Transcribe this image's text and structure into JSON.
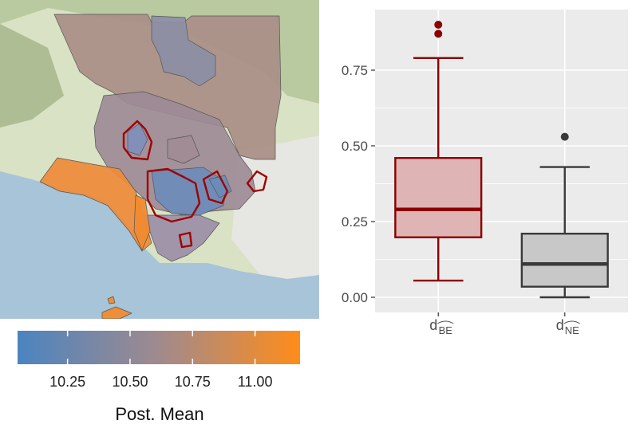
{
  "map": {
    "legend": {
      "title": "Post. Mean",
      "min": 10.05,
      "max": 11.18,
      "ticks": [
        "10.25",
        "10.50",
        "10.75",
        "11.00"
      ],
      "tick_values": [
        10.25,
        10.5,
        10.75,
        11.0
      ],
      "colors": {
        "low": "#4b84c0",
        "mid": "#a08a8e",
        "high": "#ff8c1a"
      }
    },
    "highlight_color": "#a00000"
  },
  "chart_data": {
    "type": "box",
    "title": "",
    "xlabel": "",
    "ylabel": "",
    "ylim": [
      -0.05,
      0.95
    ],
    "yticks": [
      "0.00",
      "0.25",
      "0.50",
      "0.75"
    ],
    "ytick_values": [
      0,
      0.25,
      0.5,
      0.75
    ],
    "categories": [
      "d",
      "d"
    ],
    "category_subscripts": [
      "BE",
      "NE"
    ],
    "series": [
      {
        "whisker_low": 0.055,
        "q1": 0.198,
        "median": 0.29,
        "q3": 0.46,
        "whisker_high": 0.79,
        "outliers": [
          0.87,
          0.9
        ],
        "fill": "#deb4b4",
        "stroke": "#8b0000"
      },
      {
        "whisker_low": 0.0,
        "q1": 0.035,
        "median": 0.11,
        "q3": 0.21,
        "whisker_high": 0.43,
        "outliers": [
          0.53
        ],
        "fill": "#c8c8c8",
        "stroke": "#3a3a3a"
      }
    ],
    "panel_background": "#ebebeb",
    "grid": true
  }
}
